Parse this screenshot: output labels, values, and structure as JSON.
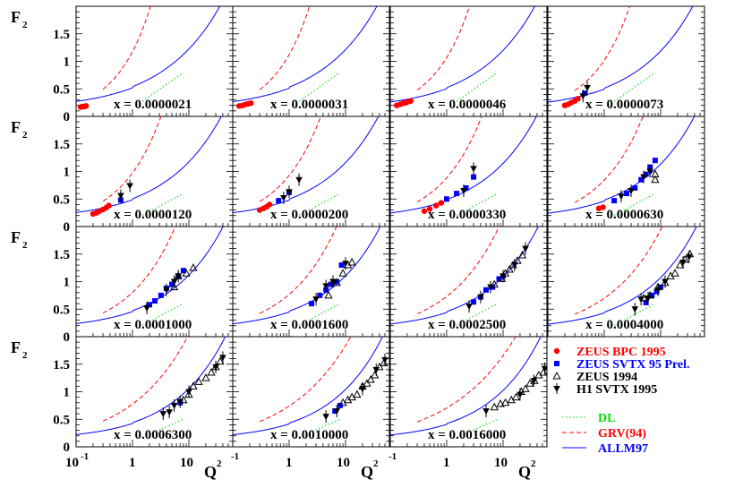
{
  "chart_data": {
    "type": "scatter",
    "y_axis_title": "F",
    "y_axis_subscript": "2",
    "x_axis_title": "Q",
    "x_axis_superscript": "2",
    "x_scale": "log",
    "xlim": [
      0.1,
      60
    ],
    "ylim": [
      0,
      2.0
    ],
    "grid": false,
    "y_tick_labels": [
      "0",
      "0.5",
      "1",
      "1.5"
    ],
    "x_tick_labels": [
      "10",
      "-1",
      "1",
      "10"
    ],
    "colors": {
      "zeus_bpc": "#ff0000",
      "zeus_svtx": "#0000ff",
      "zeus94": "#000000",
      "h1": "#000000",
      "dl": "#00dd00",
      "grv": "#ff0000",
      "allm": "#0000ff"
    },
    "legend": {
      "placement": "bottom-right",
      "data_entries": [
        {
          "label": "ZEUS BPC 1995",
          "marker": "circle",
          "color": "#ff0000"
        },
        {
          "label": "ZEUS SVTX 95 Prel.",
          "marker": "square",
          "color": "#0000ff"
        },
        {
          "label": "ZEUS 1994",
          "marker": "open-triangle-up",
          "color": "#000000"
        },
        {
          "label": "H1 SVTX 1995",
          "marker": "filled-triangle-down",
          "color": "#000000"
        }
      ],
      "curve_entries": [
        {
          "label": "DL",
          "style": "dotted",
          "color": "#00dd00"
        },
        {
          "label": "GRV(94)",
          "style": "dashed",
          "color": "#ff0000"
        },
        {
          "label": "ALLM97",
          "style": "solid",
          "color": "#0000ff"
        }
      ]
    },
    "panels": [
      {
        "label": "x =  0.0000021",
        "grv": [
          0.25,
          0.3,
          1.6,
          4.0
        ],
        "dl": [
          0.8,
          8.0
        ],
        "zeus_bpc": [
          [
            0.12,
            0.17
          ],
          [
            0.13,
            0.18
          ],
          [
            0.14,
            0.18
          ],
          [
            0.15,
            0.19
          ]
        ],
        "zeus_svtx": [],
        "zeus94": [],
        "h1": []
      },
      {
        "label": "x =  0.0000031",
        "grv": [
          0.25,
          0.3,
          1.6,
          4.0
        ],
        "dl": [
          0.8,
          8.0
        ],
        "zeus_bpc": [
          [
            0.13,
            0.19
          ],
          [
            0.15,
            0.2
          ],
          [
            0.17,
            0.22
          ],
          [
            0.19,
            0.23
          ],
          [
            0.21,
            0.24
          ]
        ],
        "zeus_svtx": [],
        "zeus94": [],
        "h1": []
      },
      {
        "label": "x =  0.0000046",
        "grv": [
          0.25,
          0.3,
          1.6,
          4.0
        ],
        "dl": [
          0.8,
          8.0
        ],
        "zeus_bpc": [
          [
            0.13,
            0.2
          ],
          [
            0.15,
            0.22
          ],
          [
            0.17,
            0.24
          ],
          [
            0.19,
            0.25
          ],
          [
            0.21,
            0.27
          ],
          [
            0.23,
            0.28
          ]
        ],
        "zeus_svtx": [],
        "zeus94": [],
        "h1": []
      },
      {
        "label": "x =  0.0000073",
        "grv": [
          0.25,
          0.3,
          1.6,
          4.0
        ],
        "dl": [
          0.8,
          8.0
        ],
        "zeus_bpc": [
          [
            0.2,
            0.2
          ],
          [
            0.23,
            0.22
          ],
          [
            0.26,
            0.25
          ],
          [
            0.3,
            0.28
          ],
          [
            0.34,
            0.32
          ]
        ],
        "zeus_svtx": [
          [
            0.45,
            0.42
          ]
        ],
        "zeus94": [],
        "h1": [
          [
            0.42,
            0.37
          ],
          [
            0.5,
            0.52
          ]
        ]
      },
      {
        "label": "x =  0.0000120",
        "grv": [
          0.25,
          0.3,
          1.6,
          4.0
        ],
        "dl": [
          0.6,
          8.0
        ],
        "zeus_bpc": [
          [
            0.2,
            0.23
          ],
          [
            0.23,
            0.25
          ],
          [
            0.26,
            0.28
          ],
          [
            0.3,
            0.31
          ],
          [
            0.34,
            0.34
          ],
          [
            0.38,
            0.38
          ]
        ],
        "zeus_svtx": [
          [
            0.62,
            0.48
          ]
        ],
        "zeus94": [],
        "h1": [
          [
            0.62,
            0.56
          ],
          [
            0.9,
            0.74
          ]
        ]
      },
      {
        "label": "x =  0.0000200",
        "grv": [
          0.25,
          0.3,
          1.6,
          4.0
        ],
        "dl": [
          0.6,
          8.0
        ],
        "zeus_bpc": [
          [
            0.3,
            0.3
          ],
          [
            0.35,
            0.33
          ],
          [
            0.4,
            0.36
          ],
          [
            0.45,
            0.4
          ]
        ],
        "zeus_svtx": [
          [
            0.65,
            0.47
          ],
          [
            1.0,
            0.62
          ]
        ],
        "zeus94": [],
        "h1": [
          [
            0.8,
            0.52
          ],
          [
            1.0,
            0.63
          ],
          [
            1.5,
            0.85
          ]
        ]
      },
      {
        "label": "x =  0.0000330",
        "grv": [
          0.25,
          0.3,
          1.6,
          4.0
        ],
        "dl": [
          0.6,
          8.0
        ],
        "zeus_bpc": [
          [
            0.4,
            0.28
          ],
          [
            0.5,
            0.32
          ],
          [
            0.65,
            0.38
          ],
          [
            0.8,
            0.43
          ]
        ],
        "zeus_svtx": [
          [
            1.0,
            0.5
          ],
          [
            1.5,
            0.6
          ],
          [
            2.2,
            0.7
          ],
          [
            3.0,
            0.9
          ]
        ],
        "zeus94": [],
        "h1": [
          [
            2.0,
            0.65
          ],
          [
            3.0,
            1.05
          ]
        ]
      },
      {
        "label": "x =  0.0000630",
        "grv": [
          0.25,
          0.3,
          1.6,
          4.0
        ],
        "dl": [
          0.6,
          8.0
        ],
        "zeus_bpc": [
          [
            0.8,
            0.33
          ],
          [
            0.95,
            0.35
          ]
        ],
        "zeus_svtx": [
          [
            1.5,
            0.47
          ],
          [
            2.5,
            0.6
          ],
          [
            3.5,
            0.7
          ],
          [
            4.5,
            0.85
          ],
          [
            5.5,
            0.95
          ],
          [
            6.5,
            1.08
          ],
          [
            8.0,
            1.2
          ]
        ],
        "zeus94": [
          [
            8.0,
            0.85
          ],
          [
            8.0,
            0.95
          ]
        ],
        "h1": [
          [
            2.0,
            0.55
          ],
          [
            3.0,
            0.65
          ],
          [
            5.0,
            0.9
          ],
          [
            6.5,
            1.0
          ]
        ]
      },
      {
        "label": "x =  0.0001000",
        "grv": [
          0.3,
          0.3,
          1.6,
          4.0
        ],
        "dl": [
          0.6,
          8.0
        ],
        "zeus_svtx": [
          [
            2.0,
            0.58
          ],
          [
            2.5,
            0.65
          ],
          [
            3.2,
            0.75
          ],
          [
            4.0,
            0.88
          ],
          [
            5.0,
            0.95
          ],
          [
            6.5,
            1.1
          ],
          [
            8.0,
            1.2
          ]
        ],
        "zeus_bpc": [],
        "zeus94": [
          [
            5.5,
            0.9
          ],
          [
            6.5,
            1.1
          ],
          [
            9.0,
            1.15
          ],
          [
            12.0,
            1.25
          ]
        ],
        "h1": [
          [
            1.8,
            0.52
          ],
          [
            4.0,
            0.85
          ],
          [
            5.5,
            1.0
          ],
          [
            6.5,
            1.1
          ]
        ]
      },
      {
        "label": "x =  0.0001600",
        "grv": [
          0.3,
          0.3,
          1.6,
          4.0
        ],
        "dl": [
          0.6,
          8.0
        ],
        "zeus_svtx": [
          [
            2.5,
            0.6
          ],
          [
            3.5,
            0.75
          ],
          [
            4.5,
            0.85
          ],
          [
            5.5,
            0.95
          ],
          [
            7.0,
            1.0
          ],
          [
            8.5,
            1.3
          ]
        ],
        "zeus_bpc": [],
        "zeus94": [
          [
            5.0,
            0.75
          ],
          [
            7.0,
            0.98
          ],
          [
            9.0,
            1.15
          ],
          [
            11.0,
            1.3
          ],
          [
            13.0,
            1.35
          ]
        ],
        "h1": [
          [
            3.0,
            0.68
          ],
          [
            4.5,
            0.92
          ],
          [
            6.0,
            1.0
          ],
          [
            10.0,
            1.33
          ]
        ]
      },
      {
        "label": "x =  0.0002500",
        "grv": [
          0.3,
          0.3,
          1.6,
          4.0
        ],
        "dl": [
          0.6,
          8.0
        ],
        "zeus_svtx": [
          [
            3.0,
            0.63
          ],
          [
            4.0,
            0.72
          ],
          [
            5.0,
            0.85
          ],
          [
            6.5,
            0.9
          ],
          [
            8.5,
            1.05
          ],
          [
            10.0,
            1.1
          ]
        ],
        "zeus_bpc": [],
        "zeus94": [
          [
            7.0,
            0.95
          ],
          [
            9.5,
            1.05
          ],
          [
            11.0,
            1.15
          ],
          [
            13.0,
            1.22
          ],
          [
            15.0,
            1.3
          ],
          [
            18.0,
            1.38
          ],
          [
            22.0,
            1.48
          ]
        ],
        "h1": [
          [
            2.5,
            0.55
          ],
          [
            4.0,
            0.72
          ],
          [
            6.0,
            0.9
          ],
          [
            10.0,
            1.1
          ],
          [
            16.0,
            1.3
          ],
          [
            25.0,
            1.6
          ]
        ]
      },
      {
        "label": "x =  0.0004000",
        "grv": [
          0.3,
          0.3,
          1.6,
          4.0
        ],
        "dl": [
          0.6,
          8.0
        ],
        "zeus_svtx": [
          [
            5.5,
            0.62
          ],
          [
            7.0,
            0.75
          ],
          [
            8.5,
            0.82
          ],
          [
            10.0,
            0.9
          ]
        ],
        "zeus_bpc": [],
        "zeus94": [
          [
            5.0,
            0.7
          ],
          [
            6.5,
            0.75
          ],
          [
            9.0,
            0.9
          ],
          [
            12.0,
            0.98
          ],
          [
            15.0,
            1.1
          ],
          [
            18.0,
            1.15
          ],
          [
            22.0,
            1.3
          ],
          [
            27.0,
            1.4
          ],
          [
            33.0,
            1.5
          ]
        ],
        "h1": [
          [
            3.5,
            0.5
          ],
          [
            4.5,
            0.68
          ],
          [
            6.0,
            0.7
          ],
          [
            9.0,
            0.85
          ],
          [
            12.0,
            1.0
          ],
          [
            25.0,
            1.35
          ],
          [
            32.0,
            1.45
          ]
        ]
      },
      {
        "label": "x =  0.0006300",
        "grv": [
          0.4,
          0.35,
          1.6,
          4.0
        ],
        "dl": [
          0.5,
          8.0
        ],
        "zeus_svtx": [
          [
            7.0,
            0.8
          ]
        ],
        "zeus_bpc": [],
        "zeus94": [
          [
            8.0,
            0.85
          ],
          [
            10.0,
            0.95
          ],
          [
            12.0,
            1.1
          ],
          [
            15.0,
            1.18
          ],
          [
            20.0,
            1.25
          ],
          [
            25.0,
            1.35
          ],
          [
            30.0,
            1.45
          ],
          [
            36.0,
            1.55
          ]
        ],
        "h1": [
          [
            3.5,
            0.6
          ],
          [
            4.5,
            0.63
          ],
          [
            5.5,
            0.75
          ],
          [
            7.0,
            0.82
          ],
          [
            10.0,
            1.0
          ],
          [
            30.0,
            1.45
          ],
          [
            40.0,
            1.62
          ]
        ]
      },
      {
        "label": "x =  0.0010000",
        "grv": [
          0.4,
          0.35,
          1.6,
          4.0
        ],
        "dl": [
          0.5,
          8.0
        ],
        "zeus_svtx": [
          [
            6.5,
            0.65
          ],
          [
            8.0,
            0.75
          ]
        ],
        "zeus_bpc": [],
        "zeus94": [
          [
            9.0,
            0.8
          ],
          [
            11.0,
            0.85
          ],
          [
            13.0,
            0.9
          ],
          [
            16.0,
            0.95
          ],
          [
            20.0,
            1.1
          ],
          [
            24.0,
            1.15
          ],
          [
            28.0,
            1.22
          ],
          [
            33.0,
            1.3
          ],
          [
            40.0,
            1.45
          ],
          [
            48.0,
            1.52
          ]
        ],
        "h1": [
          [
            4.5,
            0.55
          ],
          [
            7.0,
            0.65
          ],
          [
            20.0,
            1.05
          ],
          [
            35.0,
            1.4
          ],
          [
            50.0,
            1.58
          ]
        ]
      },
      {
        "label": "x =  0.0016000",
        "grv": [
          0.4,
          0.35,
          1.6,
          4.0
        ],
        "dl": [
          0.5,
          8.0
        ],
        "zeus_svtx": [],
        "zeus_bpc": [],
        "zeus94": [
          [
            7.0,
            0.72
          ],
          [
            9.0,
            0.78
          ],
          [
            11.0,
            0.8
          ],
          [
            14.0,
            0.85
          ],
          [
            17.0,
            0.9
          ],
          [
            21.0,
            1.0
          ],
          [
            25.0,
            1.05
          ],
          [
            30.0,
            1.15
          ],
          [
            36.0,
            1.2
          ],
          [
            43.0,
            1.3
          ],
          [
            52.0,
            1.35
          ]
        ],
        "h1": [
          [
            5.0,
            0.65
          ],
          [
            20.0,
            0.95
          ],
          [
            35.0,
            1.2
          ],
          [
            55.0,
            1.42
          ]
        ]
      }
    ]
  }
}
